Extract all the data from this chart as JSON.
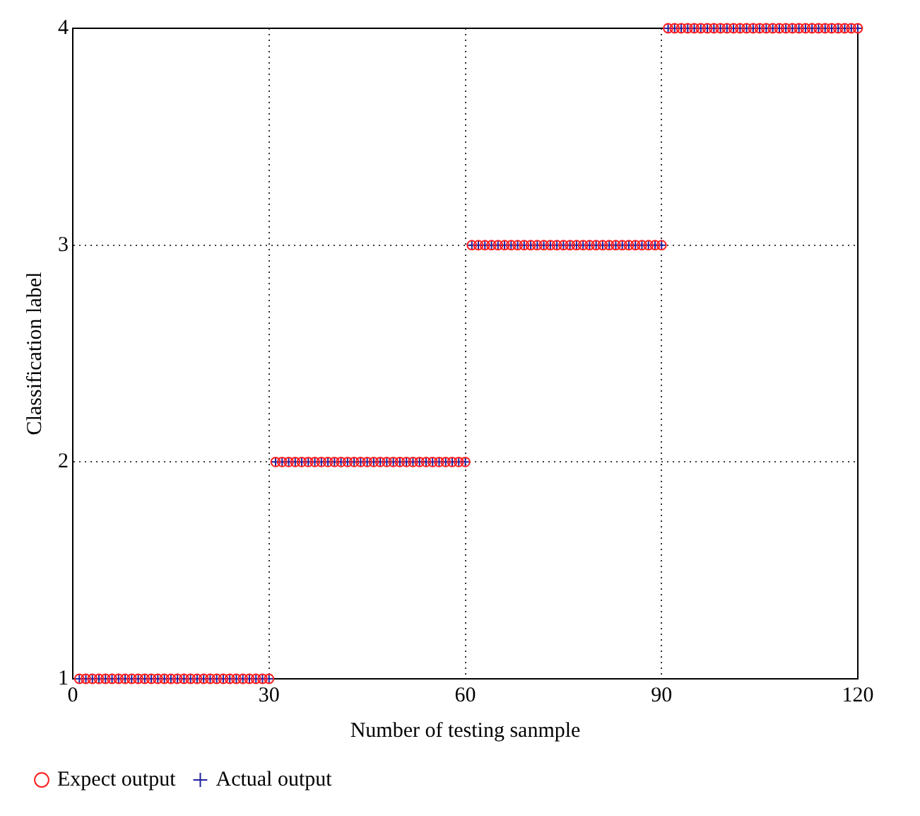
{
  "chart_data": {
    "type": "scatter",
    "xlabel": "Number of testing sanmple",
    "ylabel": "Classification label",
    "x": [
      1,
      2,
      3,
      4,
      5,
      6,
      7,
      8,
      9,
      10,
      11,
      12,
      13,
      14,
      15,
      16,
      17,
      18,
      19,
      20,
      21,
      22,
      23,
      24,
      25,
      26,
      27,
      28,
      29,
      30,
      31,
      32,
      33,
      34,
      35,
      36,
      37,
      38,
      39,
      40,
      41,
      42,
      43,
      44,
      45,
      46,
      47,
      48,
      49,
      50,
      51,
      52,
      53,
      54,
      55,
      56,
      57,
      58,
      59,
      60,
      61,
      62,
      63,
      64,
      65,
      66,
      67,
      68,
      69,
      70,
      71,
      72,
      73,
      74,
      75,
      76,
      77,
      78,
      79,
      80,
      81,
      82,
      83,
      84,
      85,
      86,
      87,
      88,
      89,
      90,
      91,
      92,
      93,
      94,
      95,
      96,
      97,
      98,
      99,
      100,
      101,
      102,
      103,
      104,
      105,
      106,
      107,
      108,
      109,
      110,
      111,
      112,
      113,
      114,
      115,
      116,
      117,
      118,
      119,
      120
    ],
    "series": [
      {
        "name": "Expect output",
        "color": "#ff2020",
        "marker": "circle",
        "values": [
          1,
          1,
          1,
          1,
          1,
          1,
          1,
          1,
          1,
          1,
          1,
          1,
          1,
          1,
          1,
          1,
          1,
          1,
          1,
          1,
          1,
          1,
          1,
          1,
          1,
          1,
          1,
          1,
          1,
          1,
          2,
          2,
          2,
          2,
          2,
          2,
          2,
          2,
          2,
          2,
          2,
          2,
          2,
          2,
          2,
          2,
          2,
          2,
          2,
          2,
          2,
          2,
          2,
          2,
          2,
          2,
          2,
          2,
          2,
          2,
          3,
          3,
          3,
          3,
          3,
          3,
          3,
          3,
          3,
          3,
          3,
          3,
          3,
          3,
          3,
          3,
          3,
          3,
          3,
          3,
          3,
          3,
          3,
          3,
          3,
          3,
          3,
          3,
          3,
          3,
          4,
          4,
          4,
          4,
          4,
          4,
          4,
          4,
          4,
          4,
          4,
          4,
          4,
          4,
          4,
          4,
          4,
          4,
          4,
          4,
          4,
          4,
          4,
          4,
          4,
          4,
          4,
          4,
          4,
          4
        ]
      },
      {
        "name": "Actual output",
        "color": "#2020a0",
        "marker": "cross",
        "values": [
          1,
          1,
          1,
          1,
          1,
          1,
          1,
          1,
          1,
          1,
          1,
          1,
          1,
          1,
          1,
          1,
          1,
          1,
          1,
          1,
          1,
          1,
          1,
          1,
          1,
          1,
          1,
          1,
          1,
          1,
          2,
          2,
          2,
          2,
          2,
          2,
          2,
          2,
          2,
          2,
          2,
          2,
          2,
          2,
          2,
          2,
          2,
          2,
          2,
          2,
          2,
          2,
          2,
          2,
          2,
          2,
          2,
          2,
          2,
          2,
          3,
          3,
          3,
          3,
          3,
          3,
          3,
          3,
          3,
          3,
          3,
          3,
          3,
          3,
          3,
          3,
          3,
          3,
          3,
          3,
          3,
          3,
          3,
          3,
          3,
          3,
          3,
          3,
          3,
          3,
          4,
          4,
          4,
          4,
          4,
          4,
          4,
          4,
          4,
          4,
          4,
          4,
          4,
          4,
          4,
          4,
          4,
          4,
          4,
          4,
          4,
          4,
          4,
          4,
          4,
          4,
          4,
          4,
          4,
          4
        ]
      }
    ],
    "xlim": [
      0,
      120
    ],
    "xticks": [
      0,
      30,
      60,
      90,
      120
    ],
    "ylim": [
      1,
      4
    ],
    "yticks": [
      1,
      2,
      3,
      4
    ],
    "grid": true,
    "legend": "bottom left"
  }
}
